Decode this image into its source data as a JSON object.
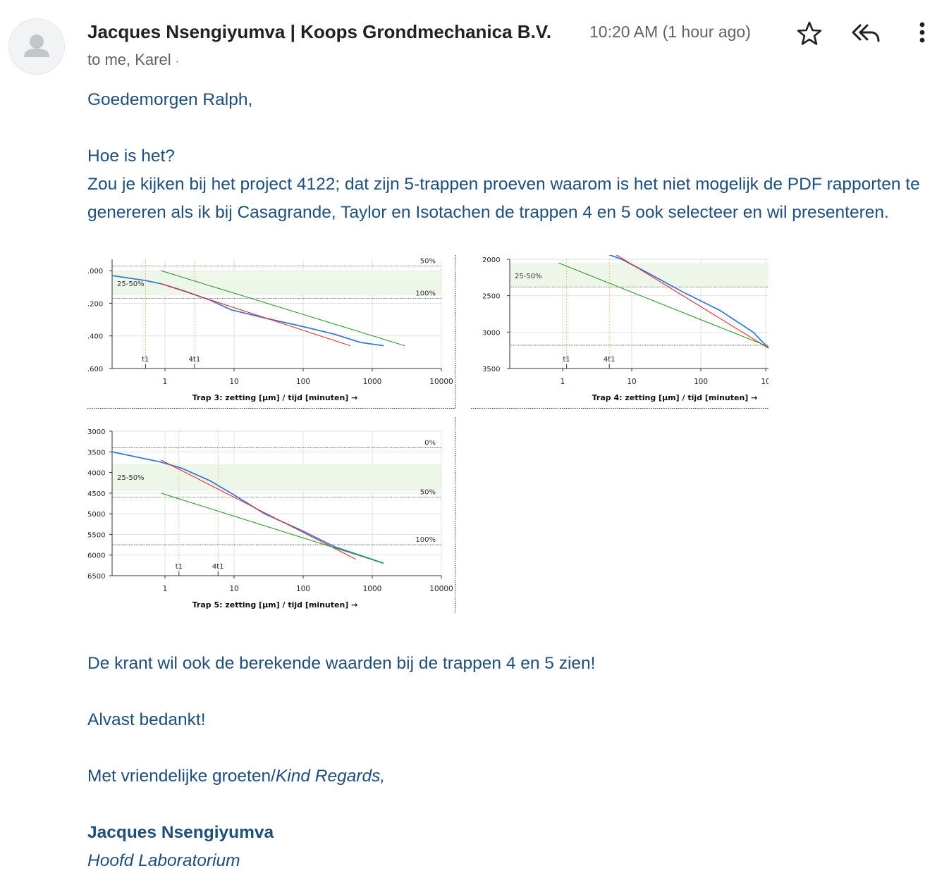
{
  "header": {
    "sender": "Jacques Nsengiyumva | Koops Grondmechanica B.V.",
    "recipients": "to me, Karel",
    "recipients_sep": "·",
    "time": "10:20 AM (1 hour ago)",
    "icons": [
      "person-icon",
      "star-icon",
      "reply-all-icon",
      "more-vert-icon"
    ]
  },
  "body": {
    "greeting": "Goedemorgen Ralph,",
    "line1": "Hoe is het?",
    "line2": "Zou je kijken bij het project 4122; dat zijn 5-trappen proeven waarom is het niet mogelijk de PDF rapporten te genereren als ik bij Casagrande, Taylor en Isotachen de trappen 4 en 5 ook selecteer en wil presenteren.",
    "line3": "De krant wil ook de berekende waarden bij de trappen 4 en 5 zien!",
    "thanks": "Alvast bedankt!",
    "regards": "Met vriendelijke groeten/",
    "regards_en": "Kind Regards,",
    "sig_name": "Jacques Nsengiyumva",
    "sig_title": "Hoofd Laboratorium"
  },
  "colors": {
    "text": "#1f4e79",
    "blue_line": "#3a78d6",
    "red_line": "#e03030",
    "green_line": "#2a9a2a",
    "band": "#eef6ea"
  },
  "chart_data": [
    {
      "type": "line",
      "title": "Trap 3: zetting [μm] / tijd [minuten] →",
      "x_ticks": [
        "1",
        "10",
        "100",
        "1000",
        "10000"
      ],
      "y_ticks": [
        ".000",
        ".200",
        ".400",
        ".600"
      ],
      "band_label": "25-50%",
      "hlines": [
        "50%",
        "100%"
      ],
      "vlines": [
        "t1",
        "4t1"
      ],
      "series": [
        {
          "color": "blue",
          "x": [
            0.2,
            0.6,
            1,
            2,
            5,
            10,
            30,
            100,
            300,
            700,
            1500
          ],
          "y": [
            1.03,
            1.06,
            1.08,
            1.12,
            1.18,
            1.24,
            1.29,
            1.34,
            1.39,
            1.44,
            1.46
          ]
        },
        {
          "color": "red",
          "x": [
            1,
            500
          ],
          "y": [
            1.08,
            1.46
          ]
        },
        {
          "color": "green",
          "x": [
            1,
            3000
          ],
          "y": [
            1.0,
            1.46
          ]
        }
      ]
    },
    {
      "type": "line",
      "title": "Trap 4: zetting [μm] / tijd [minuten] →",
      "x_ticks": [
        "1",
        "10",
        "100",
        "10"
      ],
      "y_ticks": [
        "2000",
        "2500",
        "3000",
        "3500"
      ],
      "band_label": "25-50%",
      "vlines": [
        "t1",
        "4t1"
      ],
      "series": [
        {
          "color": "blue",
          "x": [
            3.6,
            8,
            20,
            60,
            200,
            600,
            1000
          ],
          "y": [
            1880,
            2000,
            2200,
            2450,
            2700,
            3000,
            3220
          ]
        },
        {
          "color": "red",
          "x": [
            5.3,
            1000
          ],
          "y": [
            1880,
            3220
          ]
        },
        {
          "color": "green",
          "x": [
            1,
            1000
          ],
          "y": [
            2050,
            3200
          ]
        }
      ]
    },
    {
      "type": "line",
      "title": "Trap 5: zetting [μm] / tijd [minuten] →",
      "x_ticks": [
        "1",
        "10",
        "100",
        "1000",
        "10000"
      ],
      "y_ticks": [
        "3000",
        "3500",
        "4000",
        "4500",
        "5000",
        "5500",
        "6000",
        "6500"
      ],
      "band_label": "25-50%",
      "hlines": [
        "0%",
        "50%",
        "100%"
      ],
      "vlines": [
        "t1",
        "4t1"
      ],
      "series": [
        {
          "color": "blue",
          "x": [
            0.2,
            1,
            2,
            5,
            10,
            30,
            100,
            300,
            1500
          ],
          "y": [
            3500,
            3750,
            3900,
            4200,
            4500,
            5000,
            5400,
            5800,
            6200
          ]
        },
        {
          "color": "red",
          "x": [
            1,
            600
          ],
          "y": [
            3700,
            6100
          ]
        },
        {
          "color": "green",
          "x": [
            1,
            1500
          ],
          "y": [
            4500,
            6200
          ]
        }
      ]
    }
  ]
}
